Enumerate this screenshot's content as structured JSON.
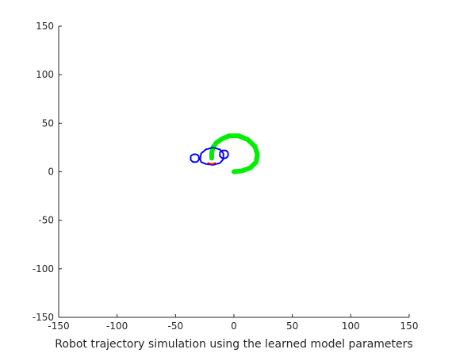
{
  "chart_data": {
    "type": "line",
    "title": "",
    "xlabel": "Robot trajectory simulation using the learned model parameters",
    "ylabel": "",
    "xlim": [
      -150,
      150
    ],
    "ylim": [
      -150,
      150
    ],
    "xticks": [
      -150,
      -100,
      -50,
      0,
      50,
      100,
      150
    ],
    "yticks": [
      -150,
      -100,
      -50,
      0,
      50,
      100,
      150
    ],
    "xtick_labels": [
      "-150",
      "-100",
      "-50",
      "0",
      "50",
      "100",
      "150"
    ],
    "ytick_labels": [
      "-150",
      "-100",
      "-50",
      "0",
      "50",
      "100",
      "150"
    ],
    "grid": false,
    "legend": "none",
    "series": [
      {
        "color": "#00ee00",
        "points": [
          [
            0,
            0
          ],
          [
            7,
            1
          ],
          [
            14,
            4
          ],
          [
            19,
            10
          ],
          [
            20,
            18
          ],
          [
            18,
            26
          ],
          [
            12,
            33
          ],
          [
            4,
            37
          ],
          [
            -4,
            37
          ],
          [
            -10,
            34
          ],
          [
            -15,
            30
          ],
          [
            -18,
            25
          ],
          [
            -19,
            19
          ],
          [
            -19,
            14
          ]
        ]
      },
      {
        "color": "#0000ff",
        "points": [
          [
            -29,
            13
          ],
          [
            -28,
            19
          ],
          [
            -24,
            23
          ],
          [
            -18,
            25
          ],
          [
            -12,
            23
          ],
          [
            -9,
            19
          ],
          [
            -9,
            13
          ],
          [
            -12,
            9
          ],
          [
            -18,
            7
          ],
          [
            -24,
            8
          ],
          [
            -28,
            10
          ],
          [
            -29,
            13
          ]
        ]
      },
      {
        "color": "#0000ff",
        "points": [
          [
            -35,
            10
          ],
          [
            -32,
            10
          ],
          [
            -30,
            12
          ],
          [
            -30,
            16
          ],
          [
            -32,
            18
          ],
          [
            -35,
            18
          ],
          [
            -37,
            16
          ],
          [
            -37,
            12
          ],
          [
            -35,
            10
          ]
        ]
      },
      {
        "color": "#0000ff",
        "points": [
          [
            -10,
            14
          ],
          [
            -7,
            14
          ],
          [
            -5,
            16
          ],
          [
            -5,
            20
          ],
          [
            -7,
            22
          ],
          [
            -10,
            22
          ],
          [
            -12,
            20
          ],
          [
            -12,
            16
          ],
          [
            -10,
            14
          ]
        ]
      },
      {
        "color": "#ff0000",
        "points": [
          [
            -22,
            9
          ],
          [
            -20,
            8
          ],
          [
            -18,
            8
          ],
          [
            -16,
            9
          ]
        ]
      }
    ]
  }
}
